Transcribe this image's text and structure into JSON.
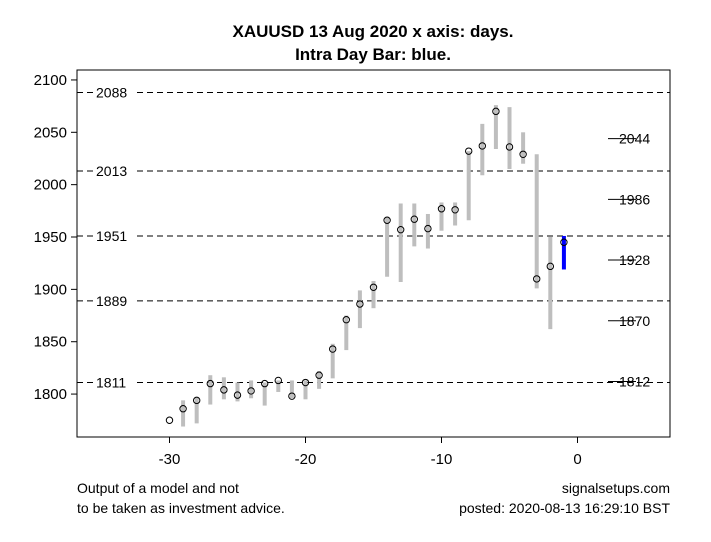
{
  "chart_data": {
    "type": "range-bar",
    "title_line1": "XAUUSD 13 Aug 2020 x axis: days.",
    "title_line2": "Intra Day Bar: blue.",
    "xlim": [
      -36.8,
      6.8
    ],
    "ylim": [
      1759,
      2109.5
    ],
    "x_ticks": [
      -30,
      -20,
      -10,
      0
    ],
    "y_ticks": [
      1800,
      1850,
      1900,
      1950,
      2000,
      2050,
      2100
    ],
    "grid": false,
    "colors": {
      "bar": "#bebebe",
      "intraday_bar": "#0000ff",
      "line": "#000000"
    },
    "bars": [
      {
        "x": -30,
        "close": 1775,
        "low": 1775,
        "high": 1775
      },
      {
        "x": -29,
        "close": 1786,
        "low": 1769,
        "high": 1794
      },
      {
        "x": -28,
        "close": 1794,
        "low": 1772,
        "high": 1797
      },
      {
        "x": -27,
        "close": 1810,
        "low": 1790,
        "high": 1818
      },
      {
        "x": -26,
        "close": 1804,
        "low": 1795,
        "high": 1816
      },
      {
        "x": -25,
        "close": 1799,
        "low": 1793,
        "high": 1811
      },
      {
        "x": -24,
        "close": 1803,
        "low": 1796,
        "high": 1813
      },
      {
        "x": -23,
        "close": 1810,
        "low": 1789,
        "high": 1811
      },
      {
        "x": -22,
        "close": 1813,
        "low": 1802,
        "high": 1813
      },
      {
        "x": -21,
        "close": 1798,
        "low": 1796,
        "high": 1813
      },
      {
        "x": -20,
        "close": 1811,
        "low": 1795,
        "high": 1813
      },
      {
        "x": -19,
        "close": 1818,
        "low": 1805,
        "high": 1822
      },
      {
        "x": -18,
        "close": 1843,
        "low": 1815,
        "high": 1848
      },
      {
        "x": -17,
        "close": 1871,
        "low": 1842,
        "high": 1875
      },
      {
        "x": -16,
        "close": 1886,
        "low": 1863,
        "high": 1899
      },
      {
        "x": -15,
        "close": 1902,
        "low": 1882,
        "high": 1908
      },
      {
        "x": -14,
        "close": 1966,
        "low": 1912,
        "high": 1969
      },
      {
        "x": -13,
        "close": 1957,
        "low": 1907,
        "high": 1982
      },
      {
        "x": -12,
        "close": 1967,
        "low": 1941,
        "high": 1982
      },
      {
        "x": -11,
        "close": 1958,
        "low": 1939,
        "high": 1972
      },
      {
        "x": -10,
        "close": 1977,
        "low": 1956,
        "high": 1983
      },
      {
        "x": -9,
        "close": 1976,
        "low": 1961,
        "high": 1983
      },
      {
        "x": -8,
        "close": 2032,
        "low": 1966,
        "high": 2032
      },
      {
        "x": -7,
        "close": 2037,
        "low": 2009,
        "high": 2058
      },
      {
        "x": -6,
        "close": 2070,
        "low": 2034,
        "high": 2076
      },
      {
        "x": -5,
        "close": 2036,
        "low": 2015,
        "high": 2074
      },
      {
        "x": -4,
        "close": 2029,
        "low": 2020,
        "high": 2050
      },
      {
        "x": -3,
        "close": 1910,
        "low": 1901,
        "high": 2029
      },
      {
        "x": -2,
        "close": 1922,
        "low": 1862,
        "high": 1950
      },
      {
        "x": -1,
        "close": 1945,
        "low": 1919,
        "high": 1951,
        "intraday": true
      }
    ],
    "dashed_levels": [
      {
        "value": 2088,
        "label": "2088"
      },
      {
        "value": 2013,
        "label": "2013"
      },
      {
        "value": 1951,
        "label": "1951"
      },
      {
        "value": 1889,
        "label": "1889"
      },
      {
        "value": 1811,
        "label": "1811"
      }
    ],
    "right_levels": [
      {
        "value": 2044,
        "label": "2044"
      },
      {
        "value": 1986,
        "label": "1986"
      },
      {
        "value": 1928,
        "label": "1928"
      },
      {
        "value": 1870,
        "label": "1870"
      },
      {
        "value": 1812,
        "label": "1812"
      }
    ]
  },
  "footer": {
    "left_line1": "Output of a model and not",
    "left_line2": "to be taken as investment advice.",
    "right_line1": "signalsetups.com",
    "right_line2": "posted: 2020-08-13 16:29:10 BST"
  }
}
